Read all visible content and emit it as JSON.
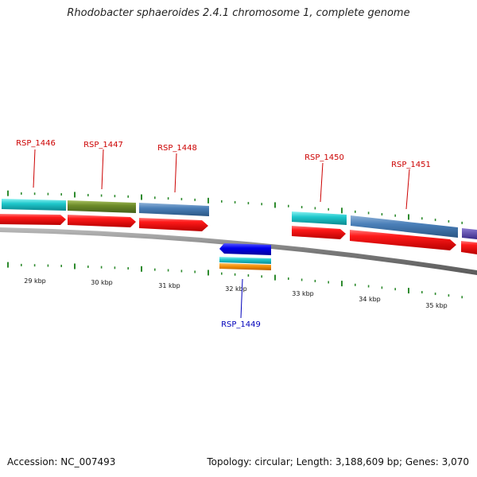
{
  "title": "Rhodobacter sphaeroides 2.4.1 chromosome 1, complete genome",
  "accession": "Accession: NC_007493",
  "summary": "Topology: circular; Length: 3,188,609 bp; Genes: 3,070",
  "colors": {
    "backbone": "#888888",
    "cds": "#ff0000",
    "label_forward": "#cc0000",
    "label_reverse": "#0000bb",
    "tick": "#2e8b2e"
  },
  "kbp_ticks": [
    "29 kbp",
    "30 kbp",
    "31 kbp",
    "32 kbp",
    "33 kbp",
    "34 kbp",
    "35 kbp"
  ],
  "genes": [
    {
      "name": "RSP_1446",
      "strand": "forward"
    },
    {
      "name": "RSP_1447",
      "strand": "forward"
    },
    {
      "name": "RSP_1448",
      "strand": "forward"
    },
    {
      "name": "RSP_1449",
      "strand": "reverse"
    },
    {
      "name": "RSP_1450",
      "strand": "forward"
    },
    {
      "name": "RSP_1451",
      "strand": "forward"
    }
  ]
}
